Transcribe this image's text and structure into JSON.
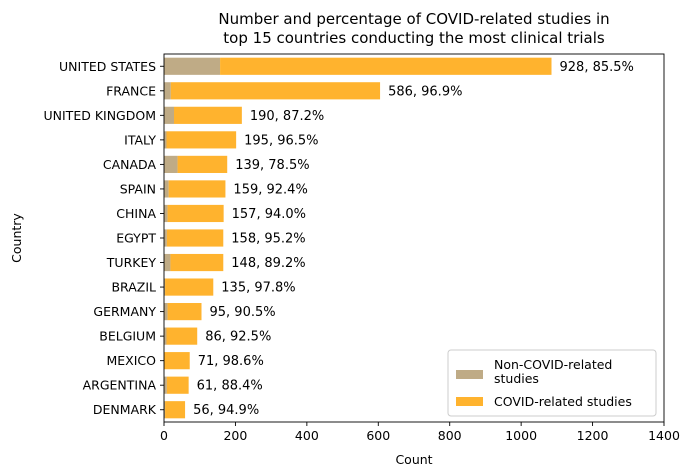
{
  "chart_data": {
    "type": "bar",
    "orientation": "horizontal",
    "stacked": true,
    "title": "Number and percentage of COVID-related studies in\ntop 15 countries conducting the most clinical trials",
    "xlabel": "Count",
    "ylabel": "Country",
    "xlim": [
      0,
      1400
    ],
    "xticks": [
      "0",
      "200",
      "400",
      "600",
      "800",
      "1000",
      "1200",
      "1400"
    ],
    "grid": false,
    "legend_position": "lower right",
    "categories": [
      "UNITED STATES",
      "FRANCE",
      "UNITED KINGDOM",
      "ITALY",
      "CANADA",
      "SPAIN",
      "CHINA",
      "EGYPT",
      "TURKEY",
      "BRAZIL",
      "GERMANY",
      "BELGIUM",
      "MEXICO",
      "ARGENTINA",
      "DENMARK"
    ],
    "series": [
      {
        "name": "Non-COVID-related\nstudies",
        "color": "#bfab86",
        "values": [
          157,
          19,
          28,
          7,
          38,
          13,
          10,
          8,
          18,
          3,
          10,
          7,
          1,
          8,
          3
        ]
      },
      {
        "name": "COVID-related studies",
        "color": "#ffb32e",
        "values": [
          928,
          586,
          190,
          195,
          139,
          159,
          157,
          158,
          148,
          135,
          95,
          86,
          71,
          61,
          56
        ]
      }
    ],
    "bar_labels": [
      "928, 85.5%",
      "586, 96.9%",
      "190, 87.2%",
      "195, 96.5%",
      "139, 78.5%",
      "159, 92.4%",
      "157, 94.0%",
      "158, 95.2%",
      "148, 89.2%",
      "135, 97.8%",
      "95, 90.5%",
      "86, 92.5%",
      "71, 98.6%",
      "61, 88.4%",
      "56, 94.9%"
    ]
  }
}
